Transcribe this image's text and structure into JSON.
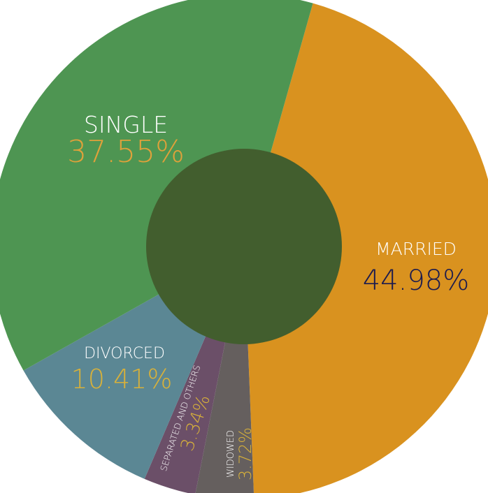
{
  "chart_data": {
    "type": "pie",
    "donut": true,
    "title": "",
    "legend": "none",
    "hole_color": "#425e2e",
    "slices": [
      {
        "name": "MARRIED",
        "label": "MARRIED",
        "value": 44.98,
        "value_label": "44.98%",
        "color": "#d9921f",
        "label_color": "#ffffff",
        "value_color": "#1c1b4e"
      },
      {
        "name": "WIDOWED",
        "label": "WIDOWED",
        "value": 3.72,
        "value_label": "3.72%",
        "color": "#655f5e",
        "label_color": "#ffffff",
        "value_color": "#d8b13a"
      },
      {
        "name": "SEPARATED AND OTHERS",
        "label": "SEPARATED AND OTHERS",
        "value": 3.34,
        "value_label": "3.34%",
        "color": "#6b4f68",
        "label_color": "#ffffff",
        "value_color": "#d8b13a"
      },
      {
        "name": "DIVORCED",
        "label": "DIVORCED",
        "value": 10.41,
        "value_label": "10.41%",
        "color": "#5b8794",
        "label_color": "#ffffff",
        "value_color": "#d8b13a"
      },
      {
        "name": "SINGLE",
        "label": "SINGLE",
        "value": 37.55,
        "value_label": "37.55%",
        "color": "#4e9552",
        "label_color": "#ffffff",
        "value_color": "#e0a13a"
      }
    ]
  }
}
